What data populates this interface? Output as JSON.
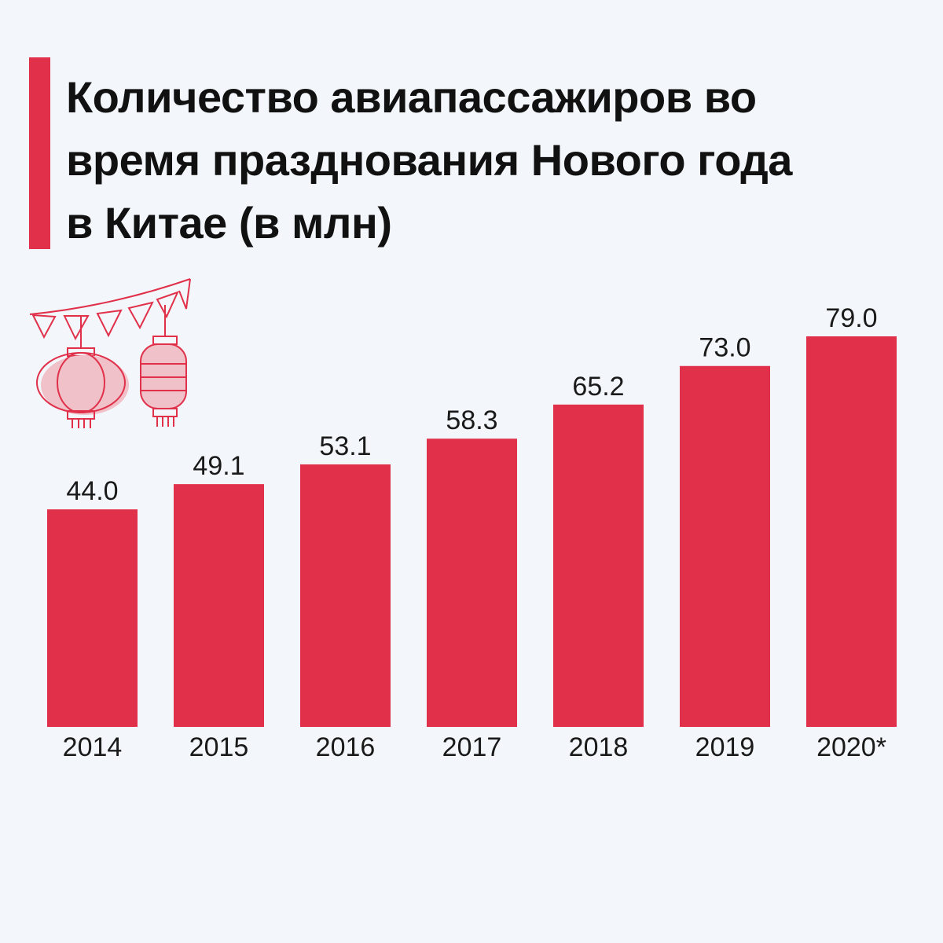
{
  "title_lines": [
    "Количество авиапассажиров во",
    "время празднования Нового года",
    "в Китае (в млн)"
  ],
  "colors": {
    "accent": "#e0304a",
    "bar": "#e0304a",
    "background": "#f3f7fb",
    "lantern_fill": "#f0c1c8"
  },
  "decoration_icons": [
    "bunting-flags-icon",
    "round-lantern-icon",
    "cylinder-lantern-icon"
  ],
  "chart_data": {
    "type": "bar",
    "title": "Количество авиапассажиров во время празднования Нового года в Китае (в млн)",
    "categories": [
      "2014",
      "2015",
      "2016",
      "2017",
      "2018",
      "2019",
      "2020*"
    ],
    "values": [
      44.0,
      49.1,
      53.1,
      58.3,
      65.2,
      73.0,
      79.0
    ],
    "value_labels": [
      "44.0",
      "49.1",
      "53.1",
      "58.3",
      "65.2",
      "73.0",
      "79.0"
    ],
    "xlabel": "",
    "ylabel": "",
    "ylim": [
      0,
      79.0
    ],
    "grid": false,
    "legend": "none"
  }
}
